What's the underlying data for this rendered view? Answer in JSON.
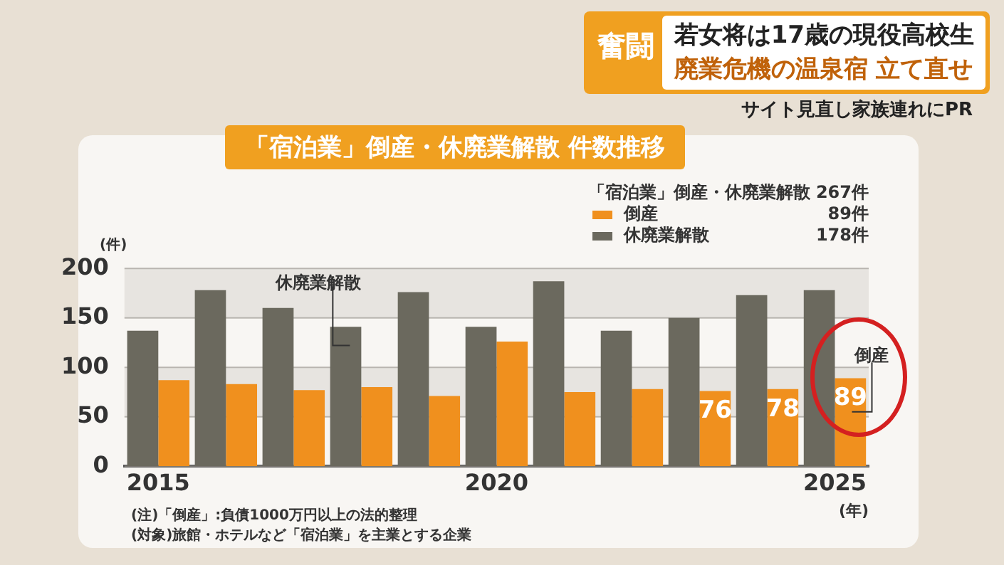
{
  "chart_data": {
    "type": "bar",
    "title": "「宿泊業」倒産・休廃業解散 件数推移",
    "xlabel": "(年)",
    "ylabel": "(件)",
    "categories": [
      "2015",
      null,
      null,
      null,
      null,
      "2020",
      null,
      null,
      null,
      null,
      "2025"
    ],
    "series": [
      {
        "name": "休廃業解散",
        "color": "#6b695e",
        "values": [
          137,
          178,
          160,
          141,
          176,
          141,
          187,
          137,
          150,
          173,
          178
        ]
      },
      {
        "name": "倒産",
        "color": "#f0901e",
        "values": [
          87,
          83,
          77,
          80,
          71,
          126,
          75,
          78,
          76,
          78,
          89
        ],
        "value_labels": [
          null,
          null,
          null,
          null,
          null,
          null,
          null,
          null,
          "76",
          "78",
          "89"
        ]
      }
    ],
    "ylim": [
      0,
      200
    ],
    "yticks": [
      0,
      50,
      100,
      150,
      200
    ],
    "grid": "y",
    "legend": "top right",
    "annotations": [
      "奮闘",
      "若女将は17歳の現役高校生",
      "廃業危機の温泉宿 立て直せ",
      "サイト見直し家族連れにPR",
      "「宿泊業」倒産・休廃業解散 267件",
      "89件",
      "178件",
      "休廃業解散",
      "倒産",
      "(注)「倒産」:負債1000万円以上の法的整理",
      "(対象)旅館・ホテルなど「宿泊業」を主業とする企業"
    ]
  }
}
